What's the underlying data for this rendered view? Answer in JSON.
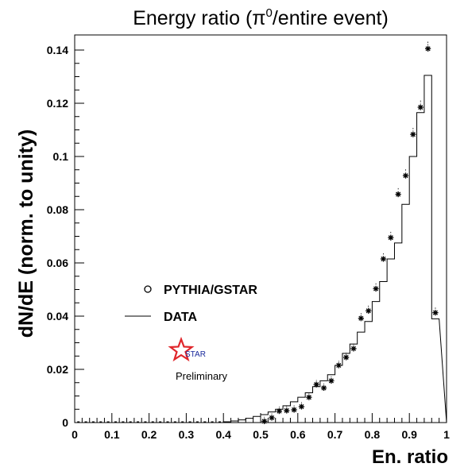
{
  "chart_data": {
    "type": "histogram",
    "title_main": "Energy ratio (π",
    "title_sup": "0",
    "title_tail": "/entire event)",
    "xlabel": "En. ratio",
    "ylabel": "dN/dE (norm. to unity)",
    "xlim": [
      0,
      1
    ],
    "ylim": [
      0,
      0.145
    ],
    "x_ticks": [
      "0",
      "0.1",
      "0.2",
      "0.3",
      "0.4",
      "0.5",
      "0.6",
      "0.7",
      "0.8",
      "0.9",
      "1"
    ],
    "y_ticks": [
      "0",
      "0.02",
      "0.04",
      "0.06",
      "0.08",
      "0.1",
      "0.12",
      "0.14"
    ],
    "bin_width": 0.02,
    "legend": {
      "position": "center-left",
      "entries": [
        {
          "label": "PYTHIA/GSTAR",
          "marker": "circle"
        },
        {
          "label": "DATA",
          "marker": "line"
        }
      ]
    },
    "annotation": {
      "logo_text": "STAR",
      "label": "Preliminary"
    },
    "series": [
      {
        "name": "DATA",
        "style": "step",
        "bin_edges": [
          0.4,
          0.42,
          0.44,
          0.46,
          0.48,
          0.5,
          0.52,
          0.54,
          0.56,
          0.58,
          0.6,
          0.62,
          0.64,
          0.66,
          0.68,
          0.7,
          0.72,
          0.74,
          0.76,
          0.78,
          0.8,
          0.82,
          0.84,
          0.86,
          0.88,
          0.9,
          0.92,
          0.94,
          0.96,
          0.98
        ],
        "values": [
          0.0003,
          0.0006,
          0.001,
          0.0016,
          0.0023,
          0.003,
          0.004,
          0.005,
          0.0063,
          0.0078,
          0.0095,
          0.0112,
          0.0135,
          0.0157,
          0.018,
          0.0215,
          0.026,
          0.0295,
          0.034,
          0.038,
          0.0455,
          0.053,
          0.0615,
          0.0675,
          0.082,
          0.1,
          0.1165,
          0.1305,
          0.039
        ]
      },
      {
        "name": "PYTHIA/GSTAR",
        "style": "points",
        "x": [
          0.51,
          0.53,
          0.55,
          0.57,
          0.59,
          0.61,
          0.63,
          0.65,
          0.67,
          0.69,
          0.71,
          0.73,
          0.75,
          0.77,
          0.79,
          0.81,
          0.83,
          0.85,
          0.87,
          0.89,
          0.91,
          0.93,
          0.95,
          0.97
        ],
        "y": [
          0.0005,
          0.0018,
          0.0043,
          0.0045,
          0.0048,
          0.006,
          0.0095,
          0.0143,
          0.013,
          0.0157,
          0.0215,
          0.0245,
          0.0278,
          0.0392,
          0.042,
          0.0503,
          0.0615,
          0.0695,
          0.0858,
          0.0928,
          0.1083,
          0.1185,
          0.1405,
          0.0413
        ]
      }
    ]
  }
}
